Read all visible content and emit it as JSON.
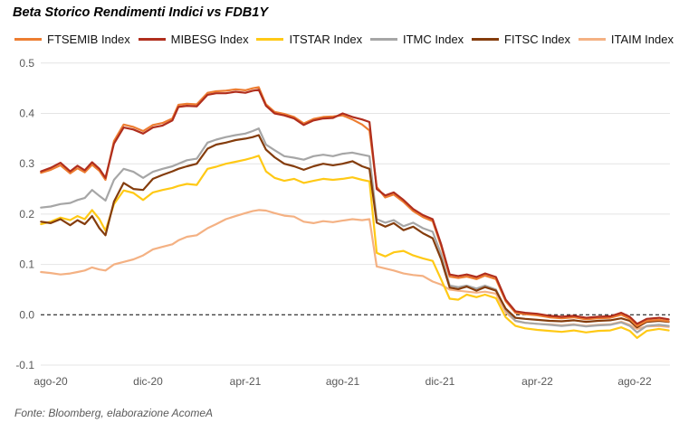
{
  "header": {
    "title": "Beta Storico Rendimenti Indici vs FDB1Y"
  },
  "footer": {
    "source": "Fonte: Bloomberg, elaborazione AcomeA"
  },
  "chart_data": {
    "type": "line",
    "title": "Beta Storico Rendimenti Indici vs FDB1Y",
    "legend_position": "top",
    "grid": "horizontal",
    "x_axis": {
      "tick_labels": [
        "ago-20",
        "dic-20",
        "apr-21",
        "ago-21",
        "dic-21",
        "apr-22",
        "ago-22"
      ],
      "tick_positions_months": [
        0,
        4,
        8,
        12,
        16,
        20,
        24
      ],
      "range_months": [
        -0.4,
        25.4
      ]
    },
    "y_axis": {
      "ticks": [
        0.5,
        0.4,
        0.3,
        0.2,
        0.1,
        0.0,
        -0.1
      ],
      "range": [
        -0.1,
        0.5
      ],
      "zero_line": "dashed-black"
    },
    "x_months": [
      -0.4,
      0,
      0.4,
      0.8,
      1.1,
      1.4,
      1.7,
      2.0,
      2.25,
      2.6,
      3.0,
      3.4,
      3.8,
      4.2,
      4.6,
      5.0,
      5.25,
      5.6,
      6.0,
      6.45,
      6.8,
      7.2,
      7.6,
      8.0,
      8.3,
      8.55,
      8.85,
      9.2,
      9.6,
      10.0,
      10.4,
      10.8,
      11.2,
      11.6,
      12.0,
      12.4,
      12.8,
      13.1,
      13.4,
      13.75,
      14.1,
      14.5,
      14.9,
      15.3,
      15.7,
      16.05,
      16.4,
      16.75,
      17.1,
      17.5,
      17.85,
      18.3,
      18.7,
      19.1,
      19.5,
      20.0,
      20.5,
      21.0,
      21.5,
      22.0,
      22.5,
      23.0,
      23.45,
      23.8,
      24.1,
      24.5,
      25.0,
      25.4
    ],
    "draw_order": [
      5,
      3,
      2,
      4,
      0,
      1
    ],
    "series": [
      {
        "name": "FTSEMIB Index",
        "color": "#ED7D31",
        "values": [
          0.282,
          0.288,
          0.297,
          0.281,
          0.291,
          0.283,
          0.298,
          0.286,
          0.268,
          0.345,
          0.378,
          0.373,
          0.365,
          0.377,
          0.381,
          0.39,
          0.417,
          0.419,
          0.418,
          0.441,
          0.444,
          0.445,
          0.448,
          0.446,
          0.45,
          0.452,
          0.418,
          0.403,
          0.399,
          0.393,
          0.38,
          0.389,
          0.393,
          0.394,
          0.396,
          0.388,
          0.378,
          0.366,
          0.254,
          0.233,
          0.239,
          0.224,
          0.206,
          0.194,
          0.186,
          0.136,
          0.076,
          0.073,
          0.076,
          0.071,
          0.078,
          0.071,
          0.027,
          0.004,
          0.001,
          -0.001,
          -0.005,
          -0.007,
          -0.005,
          -0.009,
          -0.007,
          -0.006,
          0.0,
          -0.008,
          -0.022,
          -0.012,
          -0.01,
          -0.013
        ]
      },
      {
        "name": "MIBESG Index",
        "color": "#B02E1D",
        "values": [
          0.285,
          0.292,
          0.302,
          0.285,
          0.296,
          0.287,
          0.303,
          0.29,
          0.272,
          0.34,
          0.372,
          0.368,
          0.36,
          0.372,
          0.376,
          0.386,
          0.413,
          0.415,
          0.414,
          0.437,
          0.44,
          0.44,
          0.443,
          0.441,
          0.445,
          0.447,
          0.415,
          0.4,
          0.396,
          0.39,
          0.377,
          0.386,
          0.39,
          0.391,
          0.4,
          0.393,
          0.388,
          0.383,
          0.25,
          0.237,
          0.243,
          0.228,
          0.21,
          0.198,
          0.19,
          0.14,
          0.08,
          0.077,
          0.08,
          0.075,
          0.082,
          0.075,
          0.03,
          0.007,
          0.004,
          0.002,
          -0.002,
          -0.004,
          -0.002,
          -0.006,
          -0.004,
          -0.003,
          0.004,
          -0.004,
          -0.018,
          -0.008,
          -0.006,
          -0.009
        ]
      },
      {
        "name": "ITSTAR Index",
        "color": "#FFC915",
        "values": [
          0.18,
          0.185,
          0.193,
          0.188,
          0.196,
          0.19,
          0.208,
          0.19,
          0.167,
          0.22,
          0.247,
          0.242,
          0.228,
          0.243,
          0.248,
          0.252,
          0.256,
          0.26,
          0.258,
          0.29,
          0.294,
          0.3,
          0.304,
          0.308,
          0.312,
          0.316,
          0.285,
          0.272,
          0.266,
          0.27,
          0.262,
          0.266,
          0.27,
          0.268,
          0.27,
          0.273,
          0.268,
          0.265,
          0.123,
          0.116,
          0.124,
          0.127,
          0.118,
          0.112,
          0.107,
          0.07,
          0.032,
          0.03,
          0.04,
          0.035,
          0.04,
          0.033,
          -0.005,
          -0.022,
          -0.027,
          -0.03,
          -0.032,
          -0.034,
          -0.031,
          -0.035,
          -0.032,
          -0.031,
          -0.025,
          -0.032,
          -0.046,
          -0.032,
          -0.028,
          -0.031
        ]
      },
      {
        "name": "ITMC Index",
        "color": "#A6A6A6",
        "values": [
          0.213,
          0.215,
          0.22,
          0.222,
          0.228,
          0.232,
          0.248,
          0.236,
          0.227,
          0.268,
          0.29,
          0.284,
          0.272,
          0.284,
          0.29,
          0.295,
          0.3,
          0.307,
          0.31,
          0.342,
          0.348,
          0.353,
          0.357,
          0.36,
          0.365,
          0.37,
          0.338,
          0.327,
          0.315,
          0.312,
          0.308,
          0.315,
          0.318,
          0.315,
          0.32,
          0.322,
          0.318,
          0.315,
          0.19,
          0.183,
          0.188,
          0.176,
          0.183,
          0.172,
          0.165,
          0.12,
          0.058,
          0.055,
          0.058,
          0.052,
          0.058,
          0.05,
          0.01,
          -0.012,
          -0.016,
          -0.018,
          -0.02,
          -0.022,
          -0.02,
          -0.023,
          -0.021,
          -0.02,
          -0.015,
          -0.022,
          -0.035,
          -0.022,
          -0.02,
          -0.022
        ]
      },
      {
        "name": "FITSC Index",
        "color": "#843C0C",
        "values": [
          0.185,
          0.182,
          0.19,
          0.178,
          0.188,
          0.18,
          0.196,
          0.172,
          0.158,
          0.225,
          0.262,
          0.25,
          0.248,
          0.27,
          0.278,
          0.285,
          0.29,
          0.295,
          0.3,
          0.33,
          0.338,
          0.342,
          0.347,
          0.35,
          0.353,
          0.357,
          0.328,
          0.313,
          0.3,
          0.295,
          0.288,
          0.295,
          0.3,
          0.297,
          0.3,
          0.305,
          0.295,
          0.29,
          0.183,
          0.175,
          0.182,
          0.168,
          0.175,
          0.162,
          0.152,
          0.11,
          0.054,
          0.051,
          0.056,
          0.048,
          0.055,
          0.048,
          0.012,
          -0.006,
          -0.008,
          -0.01,
          -0.012,
          -0.013,
          -0.011,
          -0.014,
          -0.012,
          -0.011,
          -0.007,
          -0.012,
          -0.025,
          -0.014,
          -0.012,
          -0.014
        ]
      },
      {
        "name": "ITAIM Index",
        "color": "#F4B183",
        "values": [
          0.085,
          0.083,
          0.08,
          0.082,
          0.085,
          0.088,
          0.094,
          0.09,
          0.088,
          0.1,
          0.105,
          0.11,
          0.118,
          0.13,
          0.135,
          0.14,
          0.148,
          0.155,
          0.158,
          0.172,
          0.18,
          0.19,
          0.196,
          0.202,
          0.206,
          0.208,
          0.207,
          0.202,
          0.197,
          0.195,
          0.185,
          0.182,
          0.186,
          0.184,
          0.187,
          0.19,
          0.188,
          0.19,
          0.096,
          0.092,
          0.088,
          0.082,
          0.079,
          0.077,
          0.066,
          0.06,
          0.05,
          0.048,
          0.046,
          0.044,
          0.046,
          0.042,
          0.005,
          -0.012,
          -0.016,
          -0.018,
          -0.019,
          -0.021,
          -0.019,
          -0.022,
          -0.02,
          -0.019,
          -0.014,
          -0.02,
          -0.028,
          -0.023,
          -0.022,
          -0.024
        ]
      }
    ],
    "style": {
      "grid_color": "#E4E4E4",
      "axis_text_color": "#595959",
      "zero_line_color": "#000000",
      "line_width": 2.2
    }
  }
}
